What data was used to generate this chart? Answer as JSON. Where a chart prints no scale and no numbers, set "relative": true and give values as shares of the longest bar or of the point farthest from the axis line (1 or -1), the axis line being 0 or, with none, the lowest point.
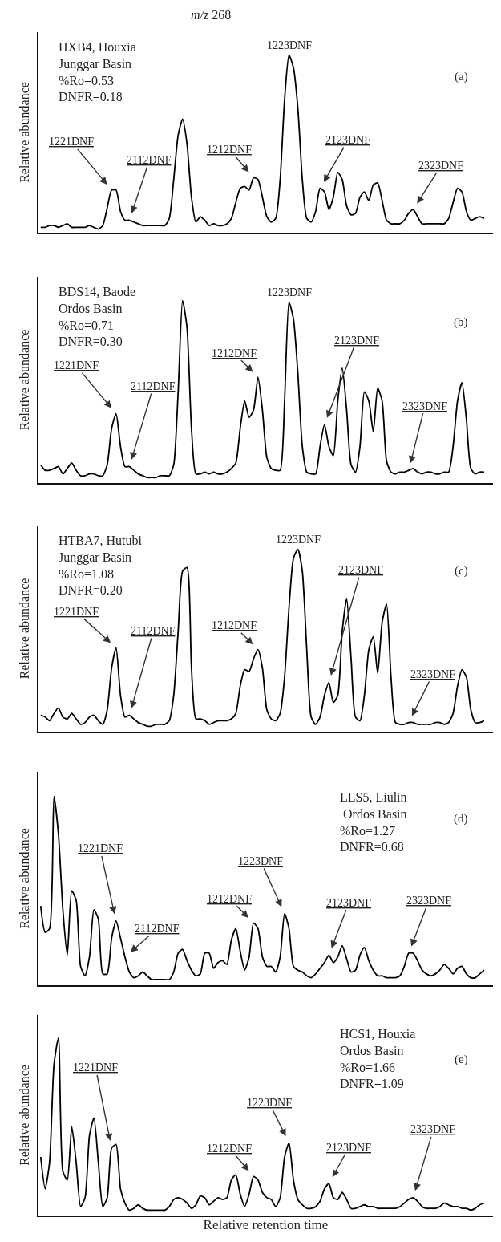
{
  "chart_data": [
    {
      "type": "line",
      "title": "m/z 268",
      "relative": true,
      "tick_labels": false,
      "color": "#000000",
      "ylabel": "Relative abundance",
      "categories": [
        null,
        null,
        null,
        null,
        null,
        null,
        null,
        null,
        null,
        null,
        null,
        null,
        null,
        null,
        null,
        null,
        null,
        null,
        null,
        null,
        null,
        null,
        null,
        null,
        null,
        null,
        null,
        null,
        null,
        null,
        null,
        null,
        null,
        null,
        null,
        null,
        null,
        null,
        null,
        null,
        null,
        null,
        null,
        null,
        null,
        null,
        null,
        null,
        null,
        null,
        null,
        null,
        null,
        null,
        null,
        null,
        null,
        null,
        null,
        null,
        null,
        null,
        null,
        null,
        null,
        null,
        null,
        null,
        null,
        null,
        null,
        null,
        null,
        null,
        null,
        null,
        null,
        null,
        null,
        null,
        null,
        null,
        null,
        null,
        null,
        null,
        null,
        null,
        null,
        null,
        null,
        null,
        null,
        null,
        null,
        null,
        null,
        null,
        null,
        null,
        null
      ],
      "values": [
        0.03,
        0.03,
        0.04,
        0.04,
        0.03,
        0.04,
        0.05,
        0.03,
        0.03,
        0.03,
        0.03,
        0.04,
        0.03,
        0.02,
        0.04,
        0.14,
        0.24,
        0.24,
        0.12,
        0.07,
        0.07,
        0.06,
        0.05,
        0.04,
        0.04,
        0.04,
        0.04,
        0.04,
        0.04,
        0.08,
        0.3,
        0.55,
        0.64,
        0.5,
        0.2,
        0.06,
        0.09,
        0.07,
        0.04,
        0.05,
        0.04,
        0.04,
        0.05,
        0.08,
        0.17,
        0.25,
        0.26,
        0.24,
        0.31,
        0.3,
        0.2,
        0.09,
        0.06,
        0.08,
        0.3,
        0.75,
        1.0,
        0.93,
        0.7,
        0.3,
        0.08,
        0.06,
        0.12,
        0.25,
        0.23,
        0.13,
        0.2,
        0.34,
        0.3,
        0.15,
        0.1,
        0.11,
        0.2,
        0.23,
        0.18,
        0.27,
        0.28,
        0.18,
        0.07,
        0.05,
        0.05,
        0.05,
        0.07,
        0.11,
        0.13,
        0.09,
        0.05,
        0.05,
        0.05,
        0.05,
        0.05,
        0.05,
        0.08,
        0.17,
        0.25,
        0.23,
        0.12,
        0.07,
        0.08,
        0.09,
        0.08
      ],
      "annotations": [
        "HXB4, Houxia\nJunggar Basin\n%Ro=0.53\nDNFR=0.18",
        "(a)",
        "1221DNF",
        "2112DNF",
        "1212DNF",
        "1223DNF",
        "2123DNF",
        "2323DNF"
      ]
    },
    {
      "type": "line",
      "relative": true,
      "tick_labels": false,
      "color": "#000000",
      "ylabel": "Relative abundance",
      "categories": [
        null,
        null,
        null,
        null,
        null,
        null,
        null,
        null,
        null,
        null,
        null,
        null,
        null,
        null,
        null,
        null,
        null,
        null,
        null,
        null,
        null,
        null,
        null,
        null,
        null,
        null,
        null,
        null,
        null,
        null,
        null,
        null,
        null,
        null,
        null,
        null,
        null,
        null,
        null,
        null,
        null,
        null,
        null,
        null,
        null,
        null,
        null,
        null,
        null,
        null,
        null,
        null,
        null,
        null,
        null,
        null,
        null,
        null,
        null,
        null,
        null,
        null,
        null,
        null,
        null,
        null,
        null,
        null,
        null,
        null,
        null,
        null,
        null,
        null,
        null,
        null,
        null,
        null,
        null,
        null,
        null,
        null,
        null,
        null,
        null,
        null,
        null,
        null,
        null,
        null,
        null,
        null,
        null,
        null,
        null,
        null,
        null,
        null,
        null,
        null,
        null
      ],
      "values": [
        0.1,
        0.07,
        0.07,
        0.08,
        0.09,
        0.05,
        0.08,
        0.11,
        0.07,
        0.04,
        0.04,
        0.05,
        0.05,
        0.04,
        0.04,
        0.1,
        0.3,
        0.38,
        0.2,
        0.09,
        0.09,
        0.07,
        0.05,
        0.04,
        0.03,
        0.03,
        0.03,
        0.04,
        0.04,
        0.04,
        0.1,
        0.5,
        1.0,
        0.85,
        0.3,
        0.05,
        0.05,
        0.06,
        0.05,
        0.06,
        0.05,
        0.05,
        0.06,
        0.08,
        0.11,
        0.3,
        0.45,
        0.36,
        0.4,
        0.58,
        0.4,
        0.14,
        0.08,
        0.07,
        0.07,
        0.45,
        0.99,
        0.9,
        0.6,
        0.2,
        0.06,
        0.05,
        0.05,
        0.2,
        0.32,
        0.2,
        0.15,
        0.45,
        0.63,
        0.4,
        0.1,
        0.06,
        0.2,
        0.5,
        0.45,
        0.28,
        0.52,
        0.45,
        0.12,
        0.06,
        0.05,
        0.06,
        0.06,
        0.07,
        0.08,
        0.06,
        0.05,
        0.06,
        0.06,
        0.05,
        0.05,
        0.06,
        0.06,
        0.2,
        0.45,
        0.55,
        0.35,
        0.08,
        0.05,
        0.06,
        0.06
      ],
      "annotations": [
        "BDS14, Baode\nOrdos Basin\n%Ro=0.71\nDNFR=0.30",
        "(b)",
        "1221DNF",
        "2112DNF",
        "1212DNF",
        "1223DNF",
        "2123DNF",
        "2323DNF"
      ]
    },
    {
      "type": "line",
      "relative": true,
      "tick_labels": false,
      "color": "#000000",
      "ylabel": "Relative abundance",
      "categories": [
        null,
        null,
        null,
        null,
        null,
        null,
        null,
        null,
        null,
        null,
        null,
        null,
        null,
        null,
        null,
        null,
        null,
        null,
        null,
        null,
        null,
        null,
        null,
        null,
        null,
        null,
        null,
        null,
        null,
        null,
        null,
        null,
        null,
        null,
        null,
        null,
        null,
        null,
        null,
        null,
        null,
        null,
        null,
        null,
        null,
        null,
        null,
        null,
        null,
        null,
        null,
        null,
        null,
        null,
        null,
        null,
        null,
        null,
        null,
        null,
        null,
        null,
        null,
        null,
        null,
        null,
        null,
        null,
        null,
        null,
        null,
        null,
        null,
        null,
        null,
        null,
        null,
        null,
        null,
        null,
        null,
        null,
        null,
        null,
        null,
        null,
        null,
        null,
        null,
        null,
        null,
        null,
        null,
        null,
        null,
        null,
        null,
        null,
        null,
        null,
        null
      ],
      "values": [
        0.09,
        0.08,
        0.06,
        0.1,
        0.13,
        0.08,
        0.07,
        0.1,
        0.07,
        0.04,
        0.05,
        0.08,
        0.09,
        0.06,
        0.04,
        0.12,
        0.35,
        0.46,
        0.2,
        0.08,
        0.09,
        0.07,
        0.05,
        0.04,
        0.03,
        0.03,
        0.04,
        0.04,
        0.04,
        0.06,
        0.2,
        0.55,
        0.88,
        0.9,
        0.35,
        0.07,
        0.07,
        0.06,
        0.04,
        0.05,
        0.06,
        0.06,
        0.06,
        0.07,
        0.1,
        0.25,
        0.34,
        0.33,
        0.4,
        0.45,
        0.35,
        0.12,
        0.07,
        0.06,
        0.1,
        0.3,
        0.68,
        0.95,
        1.0,
        0.88,
        0.45,
        0.08,
        0.04,
        0.08,
        0.2,
        0.27,
        0.16,
        0.2,
        0.55,
        0.73,
        0.4,
        0.08,
        0.06,
        0.2,
        0.45,
        0.52,
        0.32,
        0.6,
        0.7,
        0.3,
        0.05,
        0.04,
        0.04,
        0.05,
        0.05,
        0.04,
        0.04,
        0.04,
        0.04,
        0.05,
        0.05,
        0.04,
        0.05,
        0.1,
        0.25,
        0.34,
        0.3,
        0.12,
        0.05,
        0.05,
        0.06
      ],
      "annotations": [
        "HTBA7, Hutubi\nJunggar Basin\n%Ro=1.08\nDNFR=0.20",
        "(c)",
        "1221DNF",
        "2112DNF",
        "1212DNF",
        "1223DNF",
        "2123DNF",
        "2323DNF"
      ]
    },
    {
      "type": "line",
      "relative": true,
      "tick_labels": false,
      "color": "#000000",
      "ylabel": "Relative abundance",
      "categories": [
        null,
        null,
        null,
        null,
        null,
        null,
        null,
        null,
        null,
        null,
        null,
        null,
        null,
        null,
        null,
        null,
        null,
        null,
        null,
        null,
        null,
        null,
        null,
        null,
        null,
        null,
        null,
        null,
        null,
        null,
        null,
        null,
        null,
        null,
        null,
        null,
        null,
        null,
        null,
        null,
        null,
        null,
        null,
        null,
        null,
        null,
        null,
        null,
        null,
        null,
        null,
        null,
        null,
        null,
        null,
        null,
        null,
        null,
        null,
        null,
        null,
        null,
        null,
        null,
        null,
        null,
        null,
        null,
        null,
        null,
        null,
        null,
        null,
        null,
        null,
        null,
        null,
        null,
        null,
        null,
        null,
        null,
        null,
        null,
        null,
        null,
        null,
        null,
        null,
        null,
        null,
        null,
        null,
        null,
        null,
        null,
        null,
        null,
        null,
        null,
        null
      ],
      "values": [
        0.42,
        0.28,
        0.3,
        1.0,
        0.8,
        0.4,
        0.16,
        0.5,
        0.45,
        0.1,
        0.05,
        0.15,
        0.4,
        0.35,
        0.06,
        0.06,
        0.25,
        0.34,
        0.25,
        0.15,
        0.07,
        0.04,
        0.05,
        0.07,
        0.05,
        0.03,
        0.03,
        0.03,
        0.03,
        0.03,
        0.07,
        0.17,
        0.19,
        0.13,
        0.08,
        0.05,
        0.06,
        0.17,
        0.17,
        0.09,
        0.12,
        0.13,
        0.11,
        0.24,
        0.3,
        0.18,
        0.08,
        0.15,
        0.33,
        0.3,
        0.15,
        0.1,
        0.1,
        0.07,
        0.15,
        0.38,
        0.3,
        0.1,
        0.08,
        0.07,
        0.05,
        0.04,
        0.06,
        0.09,
        0.12,
        0.16,
        0.12,
        0.15,
        0.21,
        0.14,
        0.07,
        0.08,
        0.16,
        0.2,
        0.13,
        0.08,
        0.05,
        0.05,
        0.04,
        0.04,
        0.04,
        0.05,
        0.1,
        0.17,
        0.17,
        0.13,
        0.08,
        0.06,
        0.05,
        0.06,
        0.08,
        0.11,
        0.09,
        0.06,
        0.09,
        0.1,
        0.06,
        0.04,
        0.04,
        0.06,
        0.08
      ],
      "annotations": [
        "LLS5, Liulin\n Ordos Basin\n%Ro=1.27\nDNFR=0.68",
        "(d)",
        "1221DNF",
        "2112DNF",
        "1212DNF",
        "1223DNF",
        "2123DNF",
        "2323DNF"
      ]
    },
    {
      "type": "line",
      "relative": true,
      "tick_labels": false,
      "color": "#000000",
      "ylabel": "Relative abundance",
      "xlabel": "Relative retention time",
      "categories": [
        null,
        null,
        null,
        null,
        null,
        null,
        null,
        null,
        null,
        null,
        null,
        null,
        null,
        null,
        null,
        null,
        null,
        null,
        null,
        null,
        null,
        null,
        null,
        null,
        null,
        null,
        null,
        null,
        null,
        null,
        null,
        null,
        null,
        null,
        null,
        null,
        null,
        null,
        null,
        null,
        null,
        null,
        null,
        null,
        null,
        null,
        null,
        null,
        null,
        null,
        null,
        null,
        null,
        null,
        null,
        null,
        null,
        null,
        null,
        null,
        null,
        null,
        null,
        null,
        null,
        null,
        null,
        null,
        null,
        null,
        null,
        null,
        null,
        null,
        null,
        null,
        null,
        null,
        null,
        null,
        null,
        null,
        null,
        null,
        null,
        null,
        null,
        null,
        null,
        null,
        null,
        null,
        null,
        null,
        null,
        null,
        null,
        null,
        null,
        null,
        null
      ],
      "values": [
        0.33,
        0.15,
        0.3,
        0.85,
        1.0,
        0.25,
        0.2,
        0.5,
        0.3,
        0.05,
        0.1,
        0.45,
        0.55,
        0.3,
        0.05,
        0.1,
        0.38,
        0.4,
        0.15,
        0.07,
        0.03,
        0.04,
        0.06,
        0.04,
        0.03,
        0.03,
        0.03,
        0.03,
        0.03,
        0.05,
        0.09,
        0.1,
        0.09,
        0.07,
        0.04,
        0.06,
        0.11,
        0.1,
        0.06,
        0.08,
        0.1,
        0.09,
        0.1,
        0.2,
        0.23,
        0.12,
        0.05,
        0.12,
        0.22,
        0.2,
        0.13,
        0.1,
        0.09,
        0.05,
        0.1,
        0.33,
        0.41,
        0.2,
        0.09,
        0.06,
        0.04,
        0.04,
        0.05,
        0.08,
        0.15,
        0.18,
        0.1,
        0.09,
        0.13,
        0.09,
        0.04,
        0.04,
        0.05,
        0.06,
        0.05,
        0.05,
        0.04,
        0.04,
        0.04,
        0.04,
        0.04,
        0.05,
        0.07,
        0.09,
        0.1,
        0.08,
        0.05,
        0.04,
        0.04,
        0.04,
        0.05,
        0.07,
        0.06,
        0.05,
        0.05,
        0.04,
        0.04,
        0.03,
        0.04,
        0.06,
        0.07
      ],
      "annotations": [
        "HCS1, Houxia\nOrdos Basin\n%Ro=1.66\nDNFR=1.09",
        "(e)",
        "1221DNF",
        "1212DNF",
        "1223DNF",
        "2123DNF",
        "2323DNF"
      ]
    }
  ]
}
